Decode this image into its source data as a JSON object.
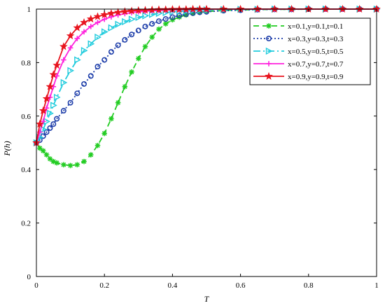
{
  "chart_data": {
    "type": "line",
    "xlabel": "T",
    "ylabel": "P(h)",
    "xlim": [
      0,
      1
    ],
    "ylim": [
      0,
      1
    ],
    "xticks": [
      "0",
      "0.2",
      "0.4",
      "0.6",
      "0.8",
      "1"
    ],
    "yticks": [
      "0",
      "0.2",
      "0.4",
      "0.6",
      "0.8",
      "1"
    ],
    "grid": false,
    "legend_position": "top-right",
    "x": [
      0,
      0.01,
      0.02,
      0.03,
      0.04,
      0.05,
      0.06,
      0.08,
      0.1,
      0.12,
      0.14,
      0.16,
      0.18,
      0.2,
      0.22,
      0.24,
      0.26,
      0.28,
      0.3,
      0.32,
      0.34,
      0.36,
      0.38,
      0.4,
      0.42,
      0.44,
      0.46,
      0.48,
      0.5,
      0.55,
      0.6,
      0.65,
      0.7,
      0.75,
      0.8,
      0.85,
      0.9,
      0.95,
      1.0
    ],
    "series": [
      {
        "name": "x=0.1,y=0.1,t=0.1",
        "color": "#22cc22",
        "dash": "8,5",
        "marker": "asterisk",
        "values": [
          0.5,
          0.48,
          0.47,
          0.455,
          0.44,
          0.43,
          0.425,
          0.418,
          0.415,
          0.418,
          0.43,
          0.455,
          0.49,
          0.535,
          0.59,
          0.65,
          0.71,
          0.765,
          0.815,
          0.86,
          0.895,
          0.925,
          0.945,
          0.96,
          0.97,
          0.978,
          0.984,
          0.988,
          0.991,
          0.995,
          0.997,
          0.998,
          0.999,
          0.999,
          1.0,
          1.0,
          1.0,
          1.0,
          1.0
        ]
      },
      {
        "name": "x=0.3,y=0.3,t=0.3",
        "color": "#1f3faa",
        "dash": "2,3",
        "marker": "circle",
        "values": [
          0.5,
          0.51,
          0.525,
          0.54,
          0.555,
          0.57,
          0.59,
          0.62,
          0.65,
          0.685,
          0.72,
          0.75,
          0.785,
          0.81,
          0.84,
          0.865,
          0.885,
          0.905,
          0.92,
          0.935,
          0.945,
          0.955,
          0.963,
          0.97,
          0.976,
          0.981,
          0.985,
          0.988,
          0.99,
          0.994,
          0.996,
          0.998,
          0.999,
          0.999,
          1.0,
          1.0,
          1.0,
          1.0,
          1.0
        ]
      },
      {
        "name": "x=0.5,y=0.5,t=0.5",
        "color": "#22ccdd",
        "dash": "10,4,2,4",
        "marker": "triangle-right",
        "values": [
          0.5,
          0.52,
          0.55,
          0.58,
          0.61,
          0.64,
          0.67,
          0.725,
          0.77,
          0.81,
          0.845,
          0.87,
          0.895,
          0.915,
          0.93,
          0.943,
          0.953,
          0.962,
          0.969,
          0.975,
          0.98,
          0.984,
          0.987,
          0.99,
          0.992,
          0.993,
          0.995,
          0.996,
          0.997,
          0.998,
          0.999,
          0.999,
          1.0,
          1.0,
          1.0,
          1.0,
          1.0,
          1.0,
          1.0
        ]
      },
      {
        "name": "x=0.7,y=0.7,t=0.7",
        "color": "#ff22dd",
        "dash": "",
        "marker": "plus",
        "values": [
          0.5,
          0.54,
          0.58,
          0.63,
          0.67,
          0.71,
          0.75,
          0.81,
          0.855,
          0.89,
          0.915,
          0.935,
          0.95,
          0.962,
          0.971,
          0.978,
          0.983,
          0.987,
          0.99,
          0.992,
          0.994,
          0.995,
          0.996,
          0.997,
          0.998,
          0.998,
          0.999,
          0.999,
          0.999,
          1.0,
          1.0,
          1.0,
          1.0,
          1.0,
          1.0,
          1.0,
          1.0,
          1.0,
          1.0
        ]
      },
      {
        "name": "x=0.9,y=0.9,t=0.9",
        "color": "#e8141e",
        "dash": "",
        "marker": "star",
        "values": [
          0.5,
          0.57,
          0.62,
          0.665,
          0.71,
          0.755,
          0.79,
          0.86,
          0.9,
          0.93,
          0.95,
          0.963,
          0.972,
          0.979,
          0.984,
          0.988,
          0.991,
          0.993,
          0.995,
          0.996,
          0.997,
          0.998,
          0.998,
          0.999,
          0.999,
          0.999,
          1.0,
          1.0,
          1.0,
          1.0,
          1.0,
          1.0,
          1.0,
          1.0,
          1.0,
          1.0,
          1.0,
          1.0,
          1.0
        ]
      }
    ]
  }
}
